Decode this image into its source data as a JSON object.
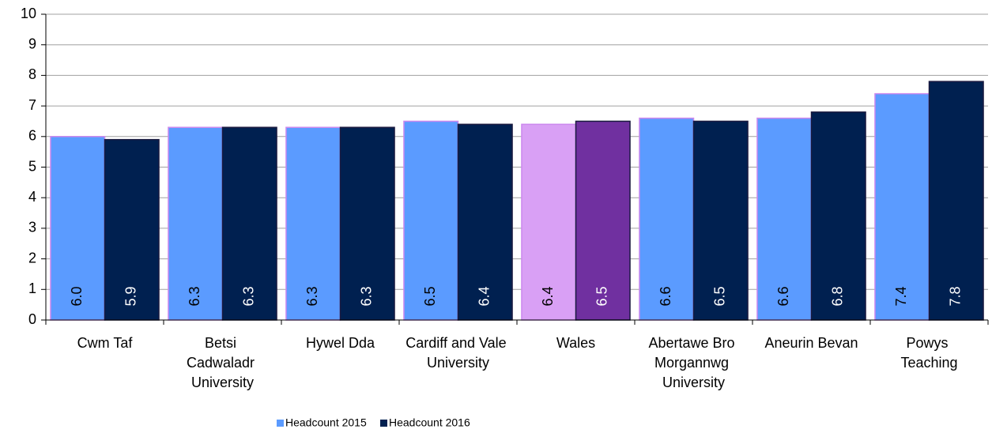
{
  "chart_data": {
    "type": "bar",
    "categories": [
      "Cwm Taf",
      "Betsi Cadwaladr University",
      "Hywel Dda",
      "Cardiff and Vale University",
      "Wales",
      "Abertawe Bro Morgannwg University",
      "Aneurin Bevan",
      "Powys Teaching"
    ],
    "series": [
      {
        "name": "Headcount 2015",
        "color": "#5b9bff",
        "colors": [
          "#5b9bff",
          "#5b9bff",
          "#5b9bff",
          "#5b9bff",
          "#d9a0f5",
          "#5b9bff",
          "#5b9bff",
          "#5b9bff"
        ],
        "values": [
          6.0,
          6.3,
          6.3,
          6.5,
          6.4,
          6.6,
          6.6,
          7.4
        ],
        "value_labels": [
          "6.0",
          "6.3",
          "6.3",
          "6.5",
          "6.4",
          "6.6",
          "6.6",
          "7.4"
        ]
      },
      {
        "name": "Headcount 2016",
        "color": "#002050",
        "colors": [
          "#002050",
          "#002050",
          "#002050",
          "#002050",
          "#7030a0",
          "#002050",
          "#002050",
          "#002050"
        ],
        "values": [
          5.9,
          6.3,
          6.3,
          6.4,
          6.5,
          6.5,
          6.8,
          7.8
        ],
        "value_labels": [
          "5.9",
          "6.3",
          "6.3",
          "6.4",
          "6.5",
          "6.5",
          "6.8",
          "7.8"
        ]
      }
    ],
    "ylim": [
      0,
      10
    ],
    "yticks": [
      0,
      1,
      2,
      3,
      4,
      5,
      6,
      7,
      8,
      9,
      10
    ],
    "grid": true,
    "legend": "bottom"
  }
}
